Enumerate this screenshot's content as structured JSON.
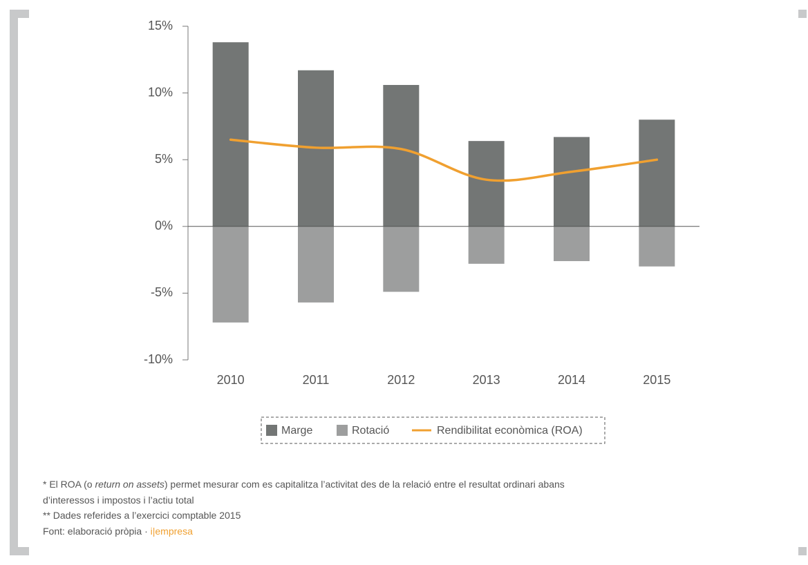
{
  "chart_data": {
    "type": "bar",
    "categories": [
      "2010",
      "2011",
      "2012",
      "2013",
      "2014",
      "2015"
    ],
    "series": [
      {
        "name": "Marge",
        "color": "#737675",
        "values": [
          13.8,
          11.7,
          10.6,
          6.4,
          6.7,
          8.0
        ]
      },
      {
        "name": "Rotació",
        "color": "#9d9e9e",
        "values": [
          -7.2,
          -5.7,
          -4.9,
          -2.8,
          -2.6,
          -3.0
        ]
      },
      {
        "name": "Rendibilitat econòmica (ROA)",
        "color": "#f0a030",
        "type": "line",
        "values": [
          6.5,
          5.9,
          5.8,
          3.5,
          4.1,
          5.0
        ]
      }
    ],
    "ylim": [
      -10,
      15
    ],
    "yticks": [
      {
        "value": -10,
        "label": "-10%"
      },
      {
        "value": -5,
        "label": "-5%"
      },
      {
        "value": 0,
        "label": "0%"
      },
      {
        "value": 5,
        "label": "5%"
      },
      {
        "value": 10,
        "label": "10%"
      },
      {
        "value": 15,
        "label": "15%"
      }
    ],
    "legend": "bottom"
  },
  "notes": {
    "line1": [
      "* El ROA (o ",
      "return on assets",
      ") permet mesurar com es capitalitza l’activitat des de la relació entre el resultat ordinari abans"
    ],
    "line2": "d’interessos i impostos i l’actiu total",
    "line3": "** Dades referides a l’exercici comptable 2015",
    "line4": [
      "Font: elaboració pròpia · ",
      "i|empresa"
    ]
  }
}
